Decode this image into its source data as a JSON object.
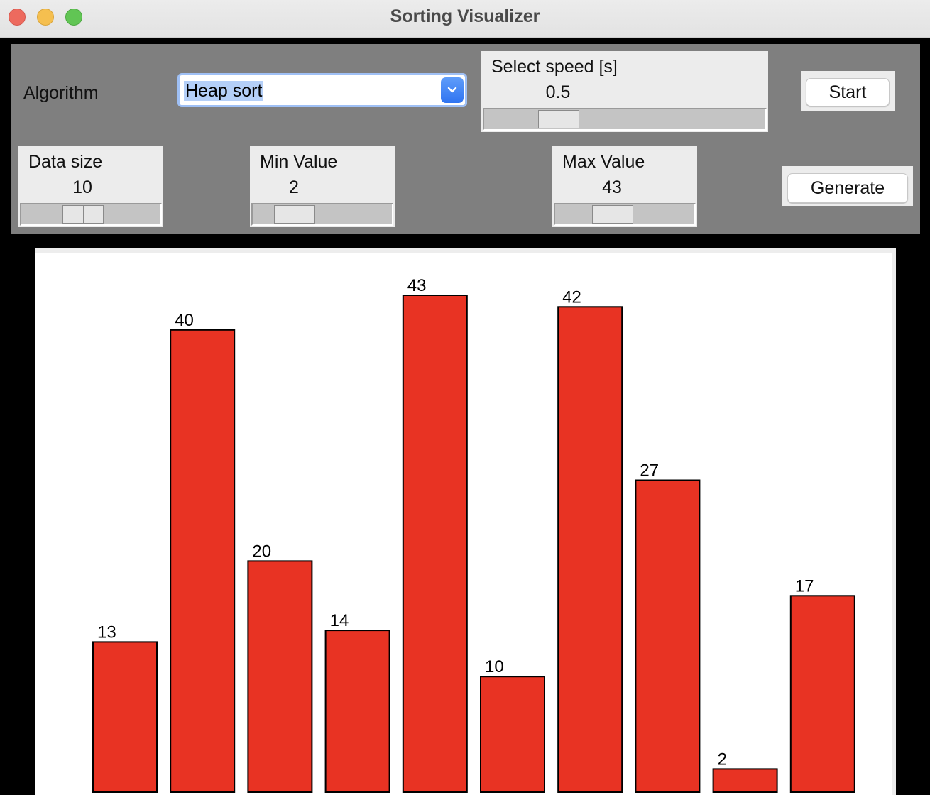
{
  "window": {
    "title": "Sorting Visualizer"
  },
  "controls": {
    "algorithm_label": "Algorithm",
    "algorithm_selected": "Heap sort",
    "speed": {
      "label": "Select speed [s]",
      "value": "0.5"
    },
    "data_size": {
      "label": "Data size",
      "value": "10"
    },
    "min_value": {
      "label": "Min Value",
      "value": "2"
    },
    "max_value": {
      "label": "Max Value",
      "value": "43"
    },
    "start_label": "Start",
    "generate_label": "Generate"
  },
  "colors": {
    "bar_fill": "#e83323",
    "bar_stroke": "#000000",
    "panel_bg": "#7f7f7f",
    "accent": "#2f74f1"
  },
  "chart_data": {
    "type": "bar",
    "values": [
      13,
      40,
      20,
      14,
      43,
      10,
      42,
      27,
      2,
      17
    ]
  }
}
